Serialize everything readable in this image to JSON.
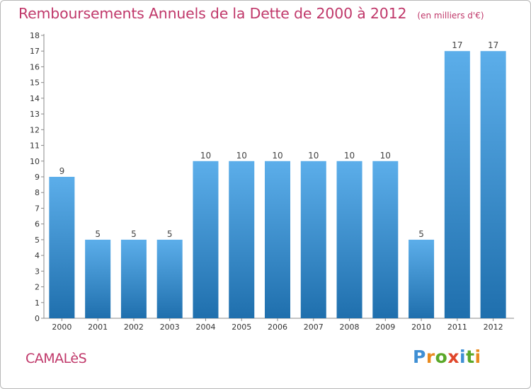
{
  "title": "Remboursements Annuels de la Dette de 2000 à 2012",
  "unit": "(en milliers d'€)",
  "commune": "CAMALèS",
  "logo": {
    "text": "Proxiti",
    "letters": [
      "P",
      "r",
      "o",
      "x",
      "i",
      "t",
      "i"
    ],
    "colors": [
      "#3f8fd4",
      "#e98a1f",
      "#5aa829",
      "#e0462a",
      "#3f8fd4",
      "#5aa829",
      "#e98a1f"
    ]
  },
  "colors": {
    "accent": "#c0386a",
    "bar_light": "#5caeea",
    "bar_dark": "#1f6fad"
  },
  "chart_data": {
    "type": "bar",
    "title": "Remboursements Annuels de la Dette de 2000 à 2012",
    "subtitle": "(en milliers d'€)",
    "categories": [
      "2000",
      "2001",
      "2002",
      "2003",
      "2004",
      "2005",
      "2006",
      "2007",
      "2008",
      "2009",
      "2010",
      "2011",
      "2012"
    ],
    "values": [
      9,
      5,
      5,
      5,
      10,
      10,
      10,
      10,
      10,
      10,
      5,
      17,
      17
    ],
    "yticks": [
      0,
      1,
      2,
      3,
      4,
      5,
      6,
      7,
      8,
      9,
      10,
      11,
      12,
      13,
      14,
      15,
      16,
      17,
      18
    ],
    "ylim": [
      0,
      18
    ],
    "grid": false,
    "data_labels": true
  }
}
